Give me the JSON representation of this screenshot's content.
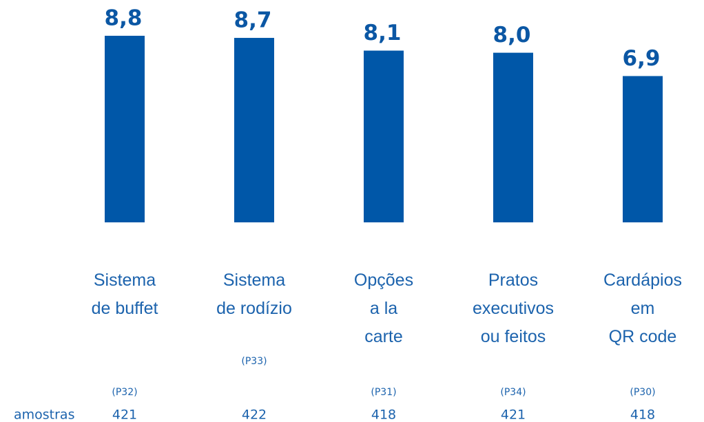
{
  "chart_data": {
    "type": "bar",
    "categories": [
      [
        "Sistema",
        "de buffet"
      ],
      [
        "Sistema",
        "de rodízio"
      ],
      [
        "Opções",
        "a la",
        "carte"
      ],
      [
        "Pratos",
        "executivos",
        "ou feitos"
      ],
      [
        "Cardápios",
        "em",
        "QR code"
      ]
    ],
    "values": [
      8.8,
      8.7,
      8.1,
      8.0,
      6.9
    ],
    "value_labels": [
      "8,8",
      "8,7",
      "8,1",
      "8,0",
      "6,9"
    ],
    "color": "#0057a8",
    "ylim": [
      0,
      10
    ],
    "codes": [
      "(P32)",
      "(P33)",
      "(P31)",
      "(P34)",
      "(P30)"
    ],
    "samples_label": "amostras",
    "samples": [
      421,
      422,
      418,
      421,
      418
    ]
  }
}
